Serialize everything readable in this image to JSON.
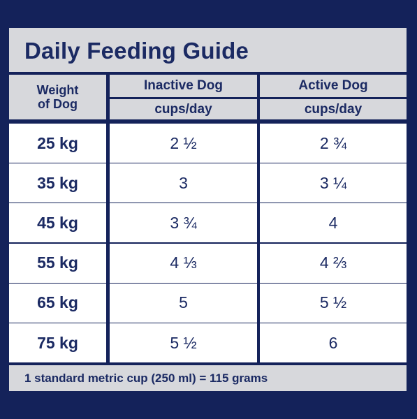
{
  "title": "Daily Feeding Guide",
  "headers": {
    "weight_line1": "Weight",
    "weight_line2": "of Dog",
    "inactive": "Inactive Dog",
    "active": "Active Dog",
    "inactive_unit": "cups/day",
    "active_unit": "cups/day"
  },
  "rows": [
    {
      "weight": "25 kg",
      "inactive": "2 ½",
      "active": "2 ¾"
    },
    {
      "weight": "35 kg",
      "inactive": "3",
      "active": "3 ¼"
    },
    {
      "weight": "45 kg",
      "inactive": "3 ¾",
      "active": "4"
    },
    {
      "weight": "55 kg",
      "inactive": "4 ⅓",
      "active": "4 ⅔"
    },
    {
      "weight": "65 kg",
      "inactive": "5",
      "active": "5 ½"
    },
    {
      "weight": "75 kg",
      "inactive": "5 ½",
      "active": "6"
    }
  ],
  "footer": "1 standard metric cup (250 ml) = 115 grams",
  "colors": {
    "navy": "#14225a",
    "text": "#1b2a63",
    "header_gray": "#d7d8dc",
    "cell": "#ffffff"
  }
}
